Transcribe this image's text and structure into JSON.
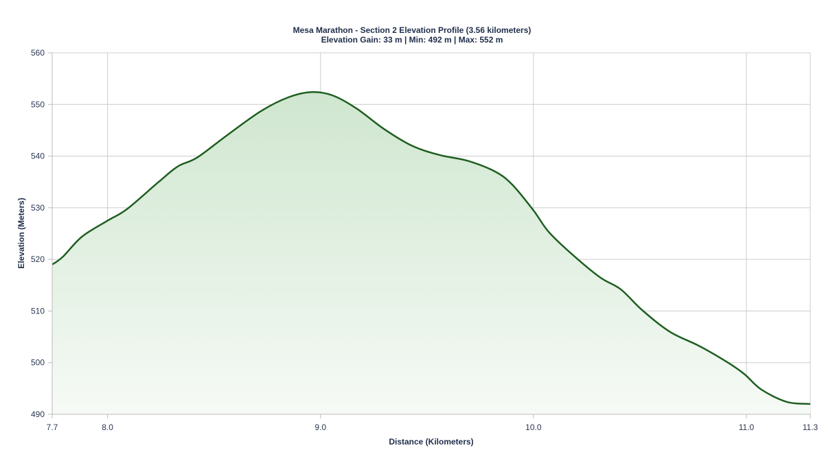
{
  "chart_data": {
    "type": "area",
    "title": "Mesa Marathon - Section 2 Elevation Profile (3.56 kilometers)",
    "subtitle": "Elevation Gain: 33 m | Min: 492 m | Max: 552 m",
    "xlabel": "Distance (Kilometers)",
    "ylabel": "Elevation (Meters)",
    "xlim": [
      7.74,
      11.3
    ],
    "ylim": [
      490,
      560
    ],
    "x_ticks": [
      {
        "value": 7.74,
        "label": "7.7"
      },
      {
        "value": 8.0,
        "label": "8.0"
      },
      {
        "value": 9.0,
        "label": "9.0"
      },
      {
        "value": 10.0,
        "label": "10.0"
      },
      {
        "value": 11.0,
        "label": "11.0"
      },
      {
        "value": 11.3,
        "label": "11.3"
      }
    ],
    "y_ticks": [
      490,
      500,
      510,
      520,
      530,
      540,
      550,
      560
    ],
    "grid": true,
    "legend": null,
    "colors": {
      "line": "#1e5e20",
      "fill_top": "#cfe6cf",
      "fill_bottom": "#f6faf6",
      "grid": "#cccccc",
      "text": "#1f2d4a"
    },
    "series": [
      {
        "name": "Elevation",
        "x": [
          7.74,
          7.79,
          7.88,
          8.0,
          8.09,
          8.24,
          8.33,
          8.42,
          8.56,
          8.72,
          8.85,
          8.96,
          9.06,
          9.17,
          9.3,
          9.43,
          9.56,
          9.69,
          9.82,
          9.9,
          10.0,
          10.07,
          10.17,
          10.31,
          10.41,
          10.51,
          10.64,
          10.78,
          10.91,
          10.99,
          11.07,
          11.19,
          11.3
        ],
        "values": [
          519,
          520.5,
          524.4,
          527.5,
          529.7,
          535,
          538,
          539.7,
          544,
          548.7,
          551.4,
          552.4,
          551.7,
          549.2,
          545.2,
          542,
          540.2,
          539.1,
          537,
          534.5,
          529.5,
          525.4,
          521.4,
          516.6,
          514.2,
          510.2,
          506,
          503.2,
          500.1,
          497.8,
          494.8,
          492.4,
          492
        ]
      }
    ]
  }
}
